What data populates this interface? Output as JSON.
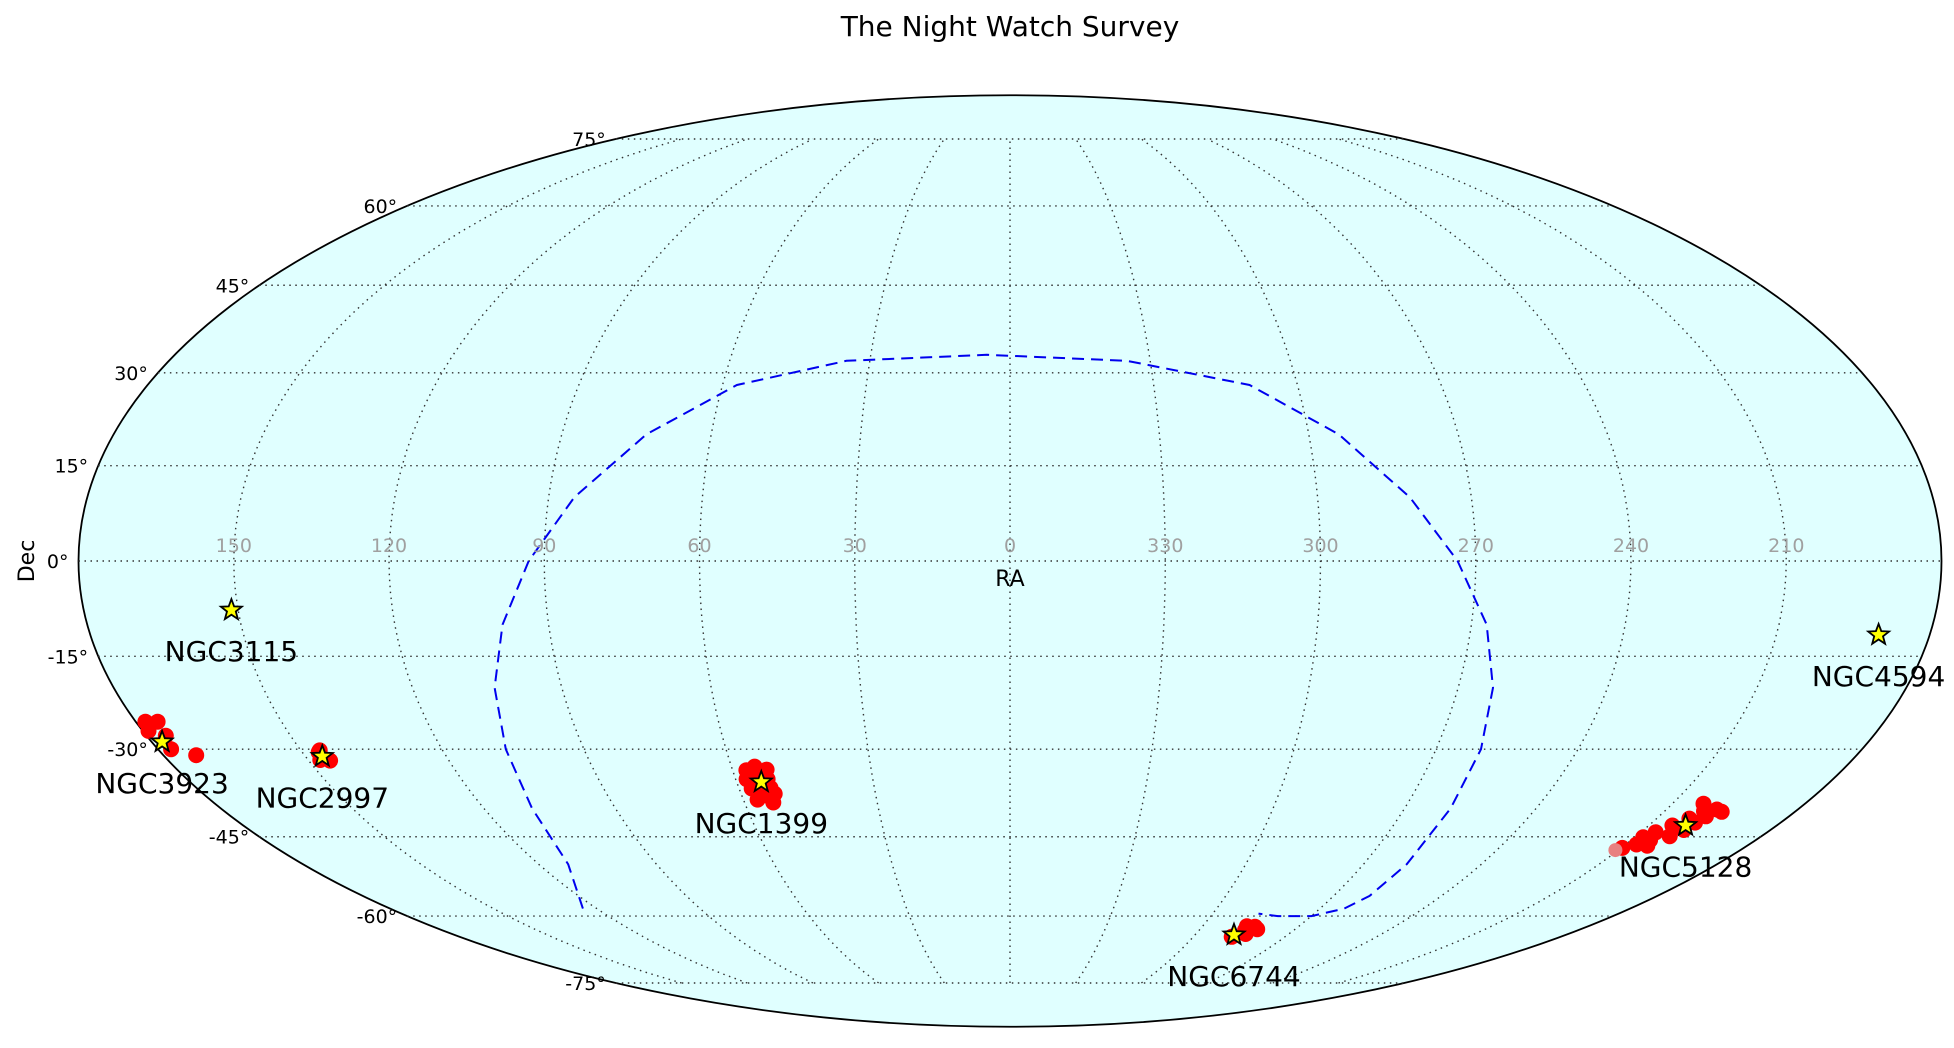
{
  "chart_data": {
    "type": "scatter",
    "projection": "mollweide",
    "title": "The Night Watch Survey",
    "xlabel": "RA",
    "ylabel": "Dec",
    "x_axis": "RA",
    "y_axis": "Dec",
    "ra_ticks": [
      150,
      120,
      90,
      60,
      30,
      0,
      330,
      300,
      270,
      240,
      210
    ],
    "ra_tick_labels": [
      "150",
      "120",
      "90",
      "60",
      "30",
      "0",
      "330",
      "300",
      "270",
      "240",
      "210"
    ],
    "dec_ticks": [
      75,
      60,
      45,
      30,
      15,
      0,
      -15,
      -30,
      -45,
      -60,
      -75
    ],
    "dec_tick_labels": [
      "75°",
      "60°",
      "45°",
      "30°",
      "15°",
      "0°",
      "-15°",
      "-30°",
      "-45°",
      "-60°",
      "-75°"
    ],
    "grid": true,
    "colors": {
      "sky": "#e0ffff",
      "outline": "#000000",
      "grid": "#333333",
      "tick_ra": "#a0a0a0",
      "plane": "#0000ee",
      "fields": "#ff0000",
      "fields_faint": "#e88080",
      "star_fill": "#ffff00",
      "star_edge": "#000000"
    },
    "galactic_plane": {
      "style": "dashed",
      "points": [
        [
          124.0,
          -58.5
        ],
        [
          112.5,
          -50
        ],
        [
          109.0,
          -40
        ],
        [
          106.5,
          -30
        ],
        [
          103.5,
          -20
        ],
        [
          99.0,
          -10
        ],
        [
          93.0,
          0
        ],
        [
          85.0,
          10
        ],
        [
          73.0,
          20
        ],
        [
          57.0,
          28
        ],
        [
          35.0,
          32
        ],
        [
          5.0,
          33
        ],
        [
          -25.0,
          32
        ],
        [
          -50.0,
          28
        ],
        [
          -66.0,
          20
        ],
        [
          -78.0,
          10
        ],
        [
          -86.5,
          0
        ],
        [
          -93.0,
          -10
        ],
        [
          -97.0,
          -20
        ],
        [
          -99.5,
          -30
        ],
        [
          -100.5,
          -40
        ],
        [
          -101.0,
          -50
        ],
        [
          -100.0,
          -56
        ],
        [
          -97.0,
          -58.5
        ],
        [
          -90.0,
          -60
        ],
        [
          -80.0,
          -60
        ],
        [
          -73.5,
          -59.5
        ]
      ]
    },
    "targets": [
      {
        "name": "NGC3115",
        "ra": 151.3,
        "dec": -7.7
      },
      {
        "name": "NGC3923",
        "ra": 177.8,
        "dec": -28.8
      },
      {
        "name": "NGC2997",
        "ra": 146.4,
        "dec": -31.2
      },
      {
        "name": "NGC1399",
        "ra": 54.6,
        "dec": -35.5
      },
      {
        "name": "NGC6744",
        "ra": 287.4,
        "dec": -63.9
      },
      {
        "name": "NGC5128",
        "ra": 201.4,
        "dec": -43.0
      },
      {
        "name": "NGC4594",
        "ra": 190.0,
        "dec": -11.6
      }
    ],
    "fields": [
      {
        "ra": 178.0,
        "dec": -25.5
      },
      {
        "ra": 175.5,
        "dec": -25.5
      },
      {
        "ra": 178.8,
        "dec": -27.0
      },
      {
        "ra": 176.0,
        "dec": -27.8
      },
      {
        "ra": 177.2,
        "dec": -30.0
      },
      {
        "ra": 173.0,
        "dec": -31.0
      },
      {
        "ra": 146.5,
        "dec": -30.5
      },
      {
        "ra": 145.4,
        "dec": -31.9
      },
      {
        "ra": 147.4,
        "dec": -31.8
      },
      {
        "ra": 146.0,
        "dec": -30.2
      },
      {
        "ra": 57.0,
        "dec": -33.5
      },
      {
        "ra": 55.0,
        "dec": -32.9
      },
      {
        "ra": 52.6,
        "dec": -33.4
      },
      {
        "ra": 57.6,
        "dec": -35.0
      },
      {
        "ra": 53.0,
        "dec": -35.0
      },
      {
        "ra": 55.6,
        "dec": -34.2
      },
      {
        "ra": 57.2,
        "dec": -36.6
      },
      {
        "ra": 55.2,
        "dec": -36.4
      },
      {
        "ra": 53.0,
        "dec": -36.5
      },
      {
        "ra": 56.0,
        "dec": -37.7
      },
      {
        "ra": 54.0,
        "dec": -37.9
      },
      {
        "ra": 52.5,
        "dec": -37.5
      },
      {
        "ra": 54.4,
        "dec": -35.4
      },
      {
        "ra": 56.8,
        "dec": -38.5
      },
      {
        "ra": 53.5,
        "dec": -39.0
      },
      {
        "ra": 287.5,
        "dec": -64.3
      },
      {
        "ra": 285.5,
        "dec": -62.9
      },
      {
        "ra": 283.5,
        "dec": -62.2
      },
      {
        "ra": 282.0,
        "dec": -62.7
      },
      {
        "ra": 284.0,
        "dec": -63.7
      },
      {
        "ra": 286.2,
        "dec": -62.1
      },
      {
        "ra": 203.0,
        "dec": -39.2
      },
      {
        "ra": 201.0,
        "dec": -40.5
      },
      {
        "ra": 198.5,
        "dec": -40.2
      },
      {
        "ra": 196.8,
        "dec": -40.6
      },
      {
        "ra": 199.2,
        "dec": -41.4
      },
      {
        "ra": 202.4,
        "dec": -41.8
      },
      {
        "ra": 200.0,
        "dec": -42.5
      },
      {
        "ra": 204.5,
        "dec": -43.0
      },
      {
        "ra": 206.5,
        "dec": -44.2
      },
      {
        "ra": 208.0,
        "dec": -45.1
      },
      {
        "ra": 205.5,
        "dec": -45.6
      },
      {
        "ra": 207.4,
        "dec": -46.4
      },
      {
        "ra": 204.4,
        "dec": -46.6
      },
      {
        "ra": 209.8,
        "dec": -47.0
      },
      {
        "ra": 202.0,
        "dec": -44.9
      },
      {
        "ra": 200.5,
        "dec": -43.8
      }
    ],
    "fields_faint": [
      {
        "ra": 210.8,
        "dec": -47.4
      }
    ]
  }
}
